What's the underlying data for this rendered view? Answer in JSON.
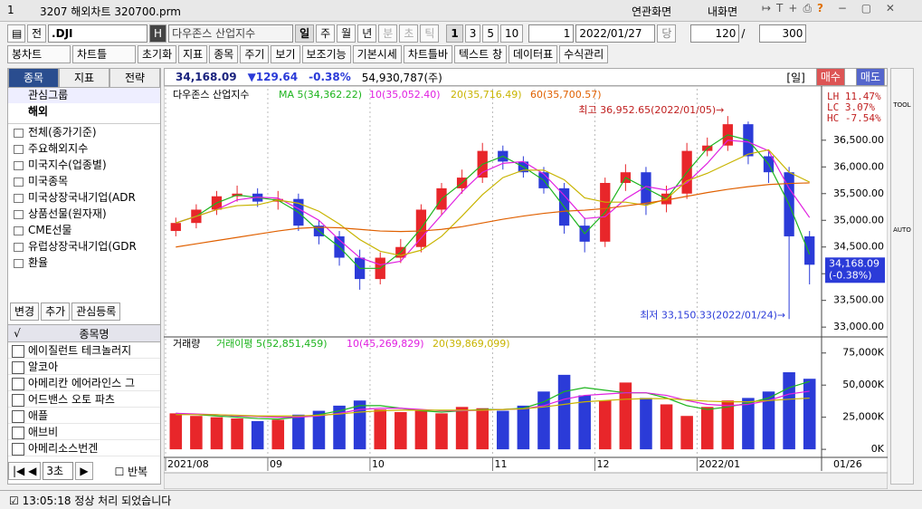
{
  "window": {
    "menu": "1",
    "title": "3207 해외차트 320700.prm",
    "links": [
      "연관화면",
      "내화면"
    ]
  },
  "toolbar1": {
    "lang": "전",
    "symbol": ".DJI",
    "hbtn": "H",
    "name": "다우존스 산업지수",
    "periods": [
      "일",
      "주",
      "월",
      "년",
      "분",
      "초",
      "틱"
    ],
    "nums": [
      "1",
      "3",
      "5",
      "10"
    ],
    "count1": "1",
    "date": "2022/01/27",
    "unit": "당",
    "count2": "120",
    "slash": "/",
    "count3": "300"
  },
  "toolbar2": [
    "봉차트",
    "차트틀",
    "초기화",
    "지표",
    "종목",
    "주기",
    "보기",
    "보조기능",
    "기본시세",
    "차트틀바",
    "텍스트 창",
    "데이터표",
    "수식관리"
  ],
  "tabs": [
    "종목",
    "지표",
    "전략"
  ],
  "tree": [
    "관심그룹",
    "해외"
  ],
  "list": [
    "전체(종가기준)",
    "주요해외지수",
    "미국지수(업종별)",
    "미국종목",
    "미국상장국내기업(ADR",
    "상품선물(원자재)",
    "CME선물",
    "유럽상장국내기업(GDR",
    "환율"
  ],
  "buttons": [
    "변경",
    "추가",
    "관심등록"
  ],
  "table_header": [
    "√",
    "종목명"
  ],
  "stocks": [
    "에이질런트 테크놀러지",
    "알코아",
    "아메리칸 에어라인스 그",
    "어드밴스 오토 파츠",
    "애플",
    "애브비",
    "아메리소스번겐"
  ],
  "footer": {
    "step": "3초",
    "repeat": "반복"
  },
  "status": "13:05:18  정상 처리 되었습니다",
  "quote": {
    "price": "34,168.09",
    "change": "▼129.64",
    "rate": "-0.38%",
    "volume": "54,930,787(주)",
    "period": "일",
    "buy": "매수",
    "sell": "매도"
  },
  "toolbar_labels": [
    "TOOL",
    "AUTO"
  ],
  "chart_data": [
    {
      "type": "candlestick",
      "title": "다우존스 산업지수",
      "up_color": "#e8262a",
      "down_color": "#2b3bd8",
      "open": [
        34800,
        34950,
        35200,
        35450,
        35500,
        35350,
        35400,
        34900,
        34700,
        34300,
        33900,
        34300,
        34500,
        35200,
        35600,
        35800,
        36300,
        36100,
        35900,
        35600,
        34900,
        34600,
        35700,
        35900,
        35300,
        35500,
        36300,
        36400,
        36800,
        36200,
        35900,
        34700
      ],
      "high": [
        35050,
        35300,
        35550,
        35650,
        35600,
        35550,
        35500,
        35000,
        34800,
        34450,
        34400,
        34650,
        35300,
        35700,
        35950,
        36450,
        36400,
        36200,
        36000,
        35700,
        35050,
        35800,
        36050,
        36000,
        35650,
        36450,
        36550,
        36952.65,
        36850,
        36300,
        36000,
        34800
      ],
      "low": [
        34700,
        34850,
        35100,
        35350,
        35250,
        35200,
        34800,
        34550,
        34150,
        33700,
        33800,
        34200,
        34400,
        35100,
        35500,
        35700,
        35950,
        35800,
        35500,
        34750,
        34400,
        34500,
        35550,
        35100,
        35150,
        35400,
        36200,
        36300,
        36050,
        35700,
        33150.33,
        33800
      ],
      "close": [
        34950,
        35200,
        35450,
        35500,
        35350,
        35400,
        34900,
        34700,
        34300,
        33900,
        34300,
        34500,
        35200,
        35600,
        35800,
        36300,
        36100,
        35900,
        35600,
        34900,
        34600,
        35700,
        35900,
        35300,
        35500,
        36300,
        36400,
        36800,
        36200,
        35900,
        34700,
        34168.09
      ],
      "series": [
        {
          "name": "MA 5(34,362.22)",
          "color": "#1db41d",
          "values": [
            34950,
            35075,
            35325,
            35475,
            35425,
            35375,
            35150,
            34800,
            34500,
            34100,
            34100,
            34400,
            34850,
            35400,
            35700,
            36050,
            36200,
            36000,
            35750,
            35250,
            34750,
            35150,
            35800,
            35600,
            35400,
            35900,
            36350,
            36600,
            36500,
            36050,
            35300,
            34362.22
          ]
        },
        {
          "name": "10(35,052.40)",
          "color": "#e020e0",
          "values": [
            34950,
            35075,
            35200,
            35383,
            35433,
            35417,
            35217,
            35000,
            34633,
            34300,
            34167,
            34233,
            34667,
            35100,
            35533,
            35900,
            36067,
            36100,
            35867,
            35467,
            35033,
            35067,
            35400,
            35633,
            35567,
            35700,
            36067,
            36500,
            36467,
            36300,
            35600,
            35052.4
          ]
        },
        {
          "name": "20(35,716.49)",
          "color": "#c8b400",
          "values": [
            34950,
            35075,
            35200,
            35275,
            35290,
            35380,
            35320,
            35170,
            34930,
            34640,
            34420,
            34340,
            34440,
            34700,
            35080,
            35480,
            35800,
            35940,
            35940,
            35760,
            35420,
            35340,
            35340,
            35280,
            35400,
            35740,
            35880,
            36060,
            36240,
            36320,
            35900,
            35716.49
          ]
        },
        {
          "name": "60(35,700.57)",
          "color": "#e06000",
          "values": [
            34500,
            34560,
            34620,
            34680,
            34740,
            34800,
            34850,
            34870,
            34860,
            34830,
            34800,
            34790,
            34800,
            34830,
            34880,
            34950,
            35020,
            35080,
            35130,
            35170,
            35190,
            35220,
            35270,
            35320,
            35380,
            35450,
            35520,
            35580,
            35630,
            35670,
            35690,
            35700.57
          ]
        }
      ],
      "ylim": [
        32850,
        37430
      ],
      "yticks": [
        {
          "value": 33000,
          "label": "33,000.00"
        },
        {
          "value": 33500,
          "label": "33,500.00"
        },
        {
          "value": 34000,
          "label": "34,000.00"
        },
        {
          "value": 34500,
          "label": "34,500.00"
        },
        {
          "value": 35000,
          "label": "35,000.00"
        },
        {
          "value": 35500,
          "label": "35,500.00"
        },
        {
          "value": 36000,
          "label": "36,000.00"
        },
        {
          "value": 36500,
          "label": "36,500.00"
        }
      ],
      "high_note": "최고 36,952.65(2022/01/05)→",
      "low_note": "최저 33,150.33(2022/01/24)→",
      "stats": [
        "LH  11.47%",
        "LC   3.07%",
        "HC  -7.54%"
      ],
      "last_label": [
        "34,168.09",
        "(-0.38%)"
      ]
    },
    {
      "type": "bar",
      "title": "거래량",
      "categories": [
        "2021/08",
        null,
        null,
        null,
        null,
        "09",
        null,
        null,
        null,
        null,
        "10",
        null,
        null,
        null,
        null,
        null,
        "11",
        null,
        null,
        null,
        null,
        "12",
        null,
        null,
        null,
        null,
        "2022/01",
        null,
        null,
        null,
        null,
        null
      ],
      "values": [
        28000,
        26000,
        25000,
        24000,
        22000,
        23000,
        27000,
        30000,
        34000,
        38000,
        31000,
        29000,
        30000,
        28000,
        33000,
        32000,
        30000,
        34000,
        45000,
        58000,
        42000,
        38000,
        52000,
        40000,
        35000,
        26000,
        33000,
        38000,
        40000,
        45000,
        60000,
        54930.787
      ],
      "series": [
        {
          "name": "거래이평 5(52,851,459)",
          "color": "#1db41d",
          "values": [
            28000,
            27000,
            26000,
            25000,
            24000,
            23500,
            25000,
            27000,
            30000,
            34000,
            34000,
            32000,
            30000,
            29000,
            30000,
            31000,
            31000,
            32000,
            37000,
            45000,
            48000,
            46000,
            44000,
            44000,
            40000,
            34000,
            31000,
            33000,
            36000,
            40000,
            48000,
            52851.459
          ]
        },
        {
          "name": "10(45,269,829)",
          "color": "#e020e0",
          "values": [
            28000,
            27500,
            27000,
            26000,
            25500,
            25000,
            25000,
            26000,
            28000,
            31000,
            32000,
            32000,
            31000,
            30000,
            30000,
            30500,
            31000,
            31500,
            34000,
            39000,
            42000,
            43000,
            44000,
            44000,
            42000,
            38000,
            35000,
            34000,
            35000,
            38000,
            43000,
            45269.829
          ]
        },
        {
          "name": "20(39,869,099)",
          "color": "#c8b400",
          "values": [
            27000,
            27000,
            27000,
            26500,
            26000,
            26000,
            26000,
            26500,
            27500,
            29000,
            30000,
            30500,
            30500,
            30500,
            30500,
            30500,
            31000,
            31500,
            33000,
            35000,
            37000,
            38000,
            39000,
            39500,
            39500,
            38500,
            37500,
            37000,
            37000,
            38000,
            39000,
            39869.099
          ]
        }
      ],
      "ylim": [
        -4860,
        85400
      ],
      "yticks": [
        {
          "value": 0,
          "label": "0K"
        },
        {
          "value": 25000,
          "label": "25,000K"
        },
        {
          "value": 50000,
          "label": "50,000K"
        },
        {
          "value": 75000,
          "label": "75,000K"
        }
      ],
      "xgrid": true,
      "cursor_label": "01/26"
    }
  ]
}
